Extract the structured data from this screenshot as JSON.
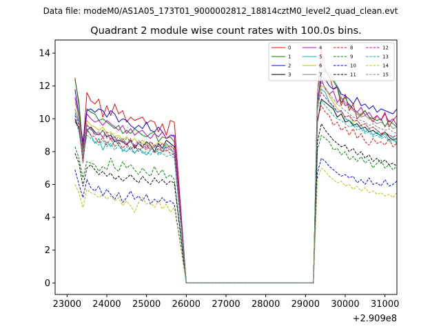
{
  "suptitle": "Data file: modeM0/AS1A05_173T01_9000002812_18814cztM0_level2_quad_clean.evt",
  "chart_data": {
    "type": "line",
    "title": "Quadrant 2 module wise count rates with 100.0s bins.",
    "xlabel": "",
    "ylabel": "",
    "x_offset_label": "+2.909e8",
    "x_offset": 290900000,
    "xlim": [
      22700,
      31300
    ],
    "ylim": [
      -0.7,
      14.8
    ],
    "xticks": [
      23000,
      24000,
      25000,
      26000,
      27000,
      28000,
      29000,
      30000,
      31000
    ],
    "xtick_labels": [
      "23000",
      "24000",
      "25000",
      "26000",
      "27000",
      "28000",
      "29000",
      "30000",
      "31000"
    ],
    "yticks": [
      0,
      2,
      4,
      6,
      8,
      10,
      12,
      14
    ],
    "ytick_labels": [
      "0",
      "2",
      "4",
      "6",
      "8",
      "10",
      "12",
      "14"
    ],
    "legend_position": "upper right",
    "gap": [
      26000,
      29200
    ],
    "segment1_start": 23200,
    "segment2_start": 29300,
    "bin": 100,
    "series": [
      {
        "name": "0",
        "color": "#ff0000",
        "dash": "solid",
        "seg1": [
          12.5,
          10.8,
          8.2,
          11.6,
          11.1,
          10.9,
          11.2,
          10.1,
          10.8,
          10.2,
          10.9,
          10.3,
          10.5,
          9.8,
          10.1,
          9.9,
          10.0,
          10.1,
          9.7,
          9.9,
          9.8,
          9.2,
          9.7,
          9.0,
          9.9,
          9.8
        ],
        "seg2": [
          11.5,
          14.2,
          12.9,
          12.6,
          11.8,
          11.9,
          10.8,
          11.5,
          10.5,
          10.9,
          10.0,
          10.3,
          10.5,
          10.1,
          9.8,
          10.2,
          9.9,
          10.4,
          9.5,
          9.9,
          10.2,
          9.3,
          9.6,
          9.6,
          9.2,
          9.1
        ]
      },
      {
        "name": "1",
        "color": "#008000",
        "dash": "solid",
        "seg1": [
          12.4,
          11.0,
          8.0,
          10.6,
          10.4,
          10.3,
          9.9,
          10.0,
          9.8,
          9.6,
          9.4,
          9.6,
          9.1,
          9.3,
          9.1,
          9.4,
          9.2,
          9.0,
          8.9,
          9.1,
          9.2,
          8.6,
          8.9,
          8.8,
          8.9,
          8.6
        ],
        "seg2": [
          11.0,
          12.8,
          13.0,
          12.5,
          12.3,
          11.9,
          11.0,
          11.3,
          10.8,
          10.6,
          10.4,
          10.2,
          10.5,
          10.1,
          10.0,
          9.9,
          10.0,
          9.5,
          9.9,
          9.7,
          9.5,
          9.4,
          9.6,
          10.9,
          9.6,
          9.2
        ]
      },
      {
        "name": "2",
        "color": "#0000ff",
        "dash": "solid",
        "seg1": [
          11.8,
          10.2,
          8.6,
          10.5,
          10.6,
          10.4,
          10.6,
          10.5,
          10.1,
          10.5,
          10.3,
          9.8,
          10.0,
          9.9,
          9.6,
          9.4,
          9.6,
          9.4,
          9.8,
          9.3,
          9.2,
          9.5,
          9.2,
          8.8,
          9.0,
          9.0
        ],
        "seg2": [
          10.8,
          12.6,
          12.4,
          12.0,
          11.8,
          12.0,
          11.5,
          11.4,
          11.2,
          10.9,
          11.3,
          10.8,
          10.9,
          10.6,
          10.8,
          10.4,
          10.6,
          10.5,
          10.4,
          10.3,
          10.6,
          10.4,
          10.4,
          10.5,
          10.7,
          10.2
        ]
      },
      {
        "name": "3",
        "color": "#000000",
        "dash": "solid",
        "seg1": [
          10.0,
          9.4,
          7.5,
          9.3,
          9.5,
          9.2,
          9.0,
          9.3,
          8.9,
          9.0,
          8.6,
          8.7,
          8.6,
          8.4,
          8.7,
          8.2,
          8.5,
          8.3,
          8.6,
          8.4,
          8.0,
          8.5,
          8.2,
          8.7,
          8.5,
          8.3
        ],
        "seg2": [
          9.8,
          11.2,
          11.0,
          10.8,
          10.6,
          10.1,
          10.3,
          9.8,
          9.9,
          9.6,
          9.7,
          9.4,
          9.5,
          9.2,
          9.3,
          9.1,
          9.0,
          9.2,
          8.9,
          8.7,
          8.8,
          8.0,
          8.7,
          8.6,
          8.5,
          8.7
        ]
      },
      {
        "name": "4",
        "color": "#c000c0",
        "dash": "solid",
        "seg1": [
          11.3,
          10.0,
          8.4,
          10.3,
          10.0,
          9.8,
          9.9,
          9.6,
          9.9,
          9.7,
          9.5,
          9.3,
          9.6,
          9.1,
          9.4,
          9.0,
          9.2,
          9.3,
          9.0,
          8.8,
          9.1,
          8.9,
          9.2,
          8.8,
          9.0,
          8.9
        ],
        "seg2": [
          11.2,
          12.4,
          11.8,
          11.5,
          11.7,
          11.0,
          11.3,
          10.8,
          10.9,
          10.6,
          10.4,
          10.7,
          10.2,
          10.4,
          10.0,
          10.2,
          9.9,
          10.3,
          9.8,
          10.0,
          9.6,
          9.9,
          9.5,
          9.8,
          9.4,
          9.6
        ]
      },
      {
        "name": "5",
        "color": "#00b0b0",
        "dash": "solid",
        "seg1": [
          10.3,
          9.8,
          7.6,
          9.4,
          9.0,
          8.5,
          8.8,
          8.1,
          8.6,
          8.3,
          8.7,
          8.4,
          8.1,
          8.0,
          8.3,
          7.9,
          8.2,
          8.0,
          7.8,
          8.1,
          8.3,
          7.9,
          8.0,
          8.5,
          8.2,
          7.8
        ],
        "seg2": [
          10.9,
          11.8,
          11.6,
          11.0,
          10.7,
          10.4,
          10.5,
          10.0,
          9.9,
          9.7,
          9.5,
          9.6,
          9.2,
          9.4,
          9.0,
          9.2,
          8.9,
          9.1,
          8.7,
          8.9,
          8.5,
          8.8,
          8.5,
          8.9,
          8.3,
          7.9
        ]
      },
      {
        "name": "6",
        "color": "#bfbf00",
        "dash": "solid",
        "seg1": [
          11.0,
          10.1,
          7.9,
          9.9,
          9.6,
          9.5,
          9.3,
          9.5,
          9.1,
          9.2,
          8.9,
          9.0,
          8.7,
          8.9,
          8.6,
          8.8,
          8.5,
          8.7,
          8.4,
          8.6,
          8.3,
          8.6,
          8.5,
          8.4,
          8.3,
          8.2
        ],
        "seg2": [
          10.5,
          12.0,
          11.9,
          11.4,
          11.0,
          10.6,
          10.4,
          10.1,
          10.2,
          9.8,
          9.9,
          9.6,
          9.7,
          9.4,
          9.5,
          9.3,
          9.1,
          9.2,
          9.0,
          8.9,
          9.0,
          8.7,
          8.8,
          8.6,
          8.9,
          8.8
        ]
      },
      {
        "name": "7",
        "color": "#808080",
        "dash": "solid",
        "seg1": [
          10.6,
          9.9,
          7.3,
          9.6,
          9.4,
          9.1,
          9.2,
          8.9,
          9.0,
          8.8,
          8.9,
          8.6,
          8.8,
          8.5,
          8.6,
          8.3,
          8.5,
          8.2,
          8.4,
          8.1,
          8.3,
          8.4,
          8.0,
          8.3,
          8.1,
          8.0
        ],
        "seg2": [
          11.6,
          13.0,
          12.8,
          12.8,
          12.4,
          12.0,
          11.3,
          11.0,
          10.7,
          10.5,
          10.3,
          10.1,
          10.2,
          10.0,
          9.9,
          9.7,
          9.8,
          9.6,
          9.7,
          9.4,
          9.5,
          9.2,
          9.3,
          9.1,
          9.2,
          9.0
        ]
      },
      {
        "name": "8",
        "color": "#ff0000",
        "dash": "dashed",
        "seg1": [
          9.8,
          9.5,
          7.4,
          9.3,
          9.0,
          8.9,
          8.5,
          8.9,
          8.4,
          8.8,
          8.3,
          8.6,
          8.2,
          8.5,
          8.1,
          8.4,
          8.0,
          8.3,
          8.1,
          8.4,
          7.9,
          8.2,
          8.0,
          8.1,
          7.9,
          7.8
        ],
        "seg2": [
          10.0,
          10.8,
          10.4,
          10.2,
          9.6,
          9.8,
          9.3,
          9.5,
          9.0,
          9.4,
          8.8,
          9.1,
          8.6,
          8.4,
          8.8,
          8.5,
          8.6,
          8.4,
          8.8,
          8.3,
          8.5,
          8.1,
          8.2,
          8.4,
          8.0,
          8.3
        ]
      },
      {
        "name": "9",
        "color": "#008000",
        "dash": "dashed",
        "seg1": [
          8.3,
          7.6,
          6.4,
          7.4,
          7.3,
          7.2,
          6.8,
          7.1,
          6.9,
          7.6,
          7.0,
          6.8,
          7.4,
          7.0,
          7.2,
          6.9,
          6.6,
          7.0,
          6.7,
          6.5,
          7.1,
          6.6,
          6.9,
          6.4,
          6.6,
          6.3
        ],
        "seg2": [
          8.1,
          9.0,
          8.8,
          8.6,
          8.1,
          8.2,
          7.8,
          8.0,
          7.5,
          7.7,
          7.4,
          7.7,
          7.3,
          7.5,
          7.0,
          7.3,
          7.5,
          7.0,
          7.2,
          6.9,
          7.1,
          6.8,
          7.0,
          6.7,
          6.8,
          6.4
        ]
      },
      {
        "name": "10",
        "color": "#0000ff",
        "dash": "dashed",
        "seg1": [
          6.9,
          6.0,
          5.2,
          6.3,
          5.8,
          5.6,
          5.9,
          5.3,
          5.7,
          5.4,
          5.1,
          5.5,
          4.9,
          5.2,
          5.6,
          5.1,
          5.3,
          5.0,
          5.4,
          4.8,
          5.1,
          4.9,
          5.2,
          4.9,
          5.0,
          4.8
        ],
        "seg2": [
          6.7,
          7.6,
          7.4,
          7.1,
          6.9,
          6.7,
          6.5,
          6.6,
          6.4,
          6.5,
          6.1,
          6.3,
          6.0,
          6.4,
          6.0,
          6.1,
          5.9,
          6.3,
          5.9,
          6.0,
          6.2,
          5.8,
          5.9,
          6.0,
          6.4,
          5.8
        ]
      },
      {
        "name": "11",
        "color": "#000000",
        "dash": "dashed",
        "seg1": [
          7.9,
          7.3,
          5.9,
          7.0,
          7.2,
          6.9,
          6.6,
          6.8,
          6.5,
          6.7,
          6.3,
          6.5,
          6.2,
          6.4,
          6.6,
          6.3,
          6.1,
          6.5,
          6.2,
          6.0,
          6.4,
          6.1,
          6.3,
          6.0,
          6.2,
          6.1
        ],
        "seg2": [
          8.6,
          9.7,
          9.3,
          9.0,
          8.7,
          8.5,
          8.3,
          8.4,
          8.0,
          8.2,
          7.8,
          8.0,
          7.6,
          7.8,
          7.4,
          7.6,
          7.3,
          7.5,
          7.2,
          7.3,
          7.1,
          7.3,
          7.0,
          7.1,
          6.9,
          6.1
        ]
      },
      {
        "name": "12",
        "color": "#c000c0",
        "dash": "dashed",
        "seg1": [
          10.2,
          9.6,
          8.0,
          9.6,
          9.4,
          9.0,
          9.1,
          8.9,
          9.2,
          8.7,
          8.9,
          8.5,
          8.7,
          8.4,
          8.8,
          8.3,
          8.6,
          8.5,
          8.2,
          8.6,
          8.4,
          8.3,
          8.5,
          8.2,
          8.4,
          8.1
        ],
        "seg2": [
          10.9,
          11.6,
          11.3,
          11.0,
          10.8,
          10.4,
          10.5,
          10.1,
          10.2,
          9.9,
          9.9,
          9.6,
          9.7,
          9.4,
          9.5,
          9.3,
          9.1,
          9.2,
          9.0,
          8.9,
          9.0,
          8.8,
          8.9,
          8.7,
          8.8,
          8.6
        ]
      },
      {
        "name": "13",
        "color": "#00b0b0",
        "dash": "dashed",
        "seg1": [
          9.9,
          9.2,
          7.7,
          9.0,
          8.8,
          8.6,
          8.4,
          8.7,
          8.3,
          8.5,
          8.1,
          8.4,
          8.0,
          8.3,
          8.1,
          7.9,
          8.2,
          7.9,
          8.0,
          7.8,
          8.1,
          7.8,
          7.9,
          7.7,
          7.8,
          7.6
        ],
        "seg2": [
          10.7,
          11.1,
          10.8,
          10.5,
          10.2,
          10.0,
          9.9,
          9.7,
          9.5,
          9.6,
          9.3,
          9.4,
          9.1,
          9.2,
          8.9,
          9.0,
          8.8,
          8.9,
          8.6,
          8.7,
          8.5,
          8.6,
          8.4,
          8.5,
          8.3,
          8.4
        ]
      },
      {
        "name": "14",
        "color": "#bfbf00",
        "dash": "dashed",
        "seg1": [
          6.0,
          5.5,
          4.6,
          5.7,
          5.5,
          5.4,
          5.2,
          5.4,
          5.1,
          5.3,
          5.0,
          5.2,
          4.7,
          5.0,
          4.7,
          4.3,
          4.9,
          5.2,
          4.8,
          4.9,
          4.6,
          5.0,
          4.5,
          4.8,
          4.3,
          4.6
        ],
        "seg2": [
          6.3,
          7.0,
          6.8,
          6.5,
          6.3,
          6.1,
          6.2,
          5.9,
          6.0,
          5.7,
          5.9,
          5.6,
          5.8,
          5.5,
          5.6,
          5.4,
          5.5,
          5.3,
          5.4,
          5.2,
          5.5,
          5.0,
          5.3,
          5.1,
          5.2,
          5.2
        ]
      },
      {
        "name": "15",
        "color": "#808080",
        "dash": "dashed",
        "seg1": [
          10.4,
          9.7,
          7.8,
          9.7,
          9.3,
          9.2,
          9.0,
          9.3,
          8.8,
          9.1,
          8.7,
          8.9,
          8.5,
          8.8,
          8.6,
          8.4,
          8.7,
          8.3,
          8.5,
          8.2,
          8.4,
          8.1,
          8.3,
          8.0,
          8.2,
          8.0
        ],
        "seg2": [
          11.0,
          12.2,
          11.9,
          11.5,
          11.2,
          10.9,
          10.7,
          10.5,
          10.3,
          10.1,
          10.0,
          9.9,
          9.8,
          9.6,
          9.7,
          9.5,
          9.4,
          9.3,
          9.4,
          9.2,
          9.1,
          9.2,
          9.0,
          9.1,
          8.9,
          9.0
        ]
      }
    ]
  }
}
